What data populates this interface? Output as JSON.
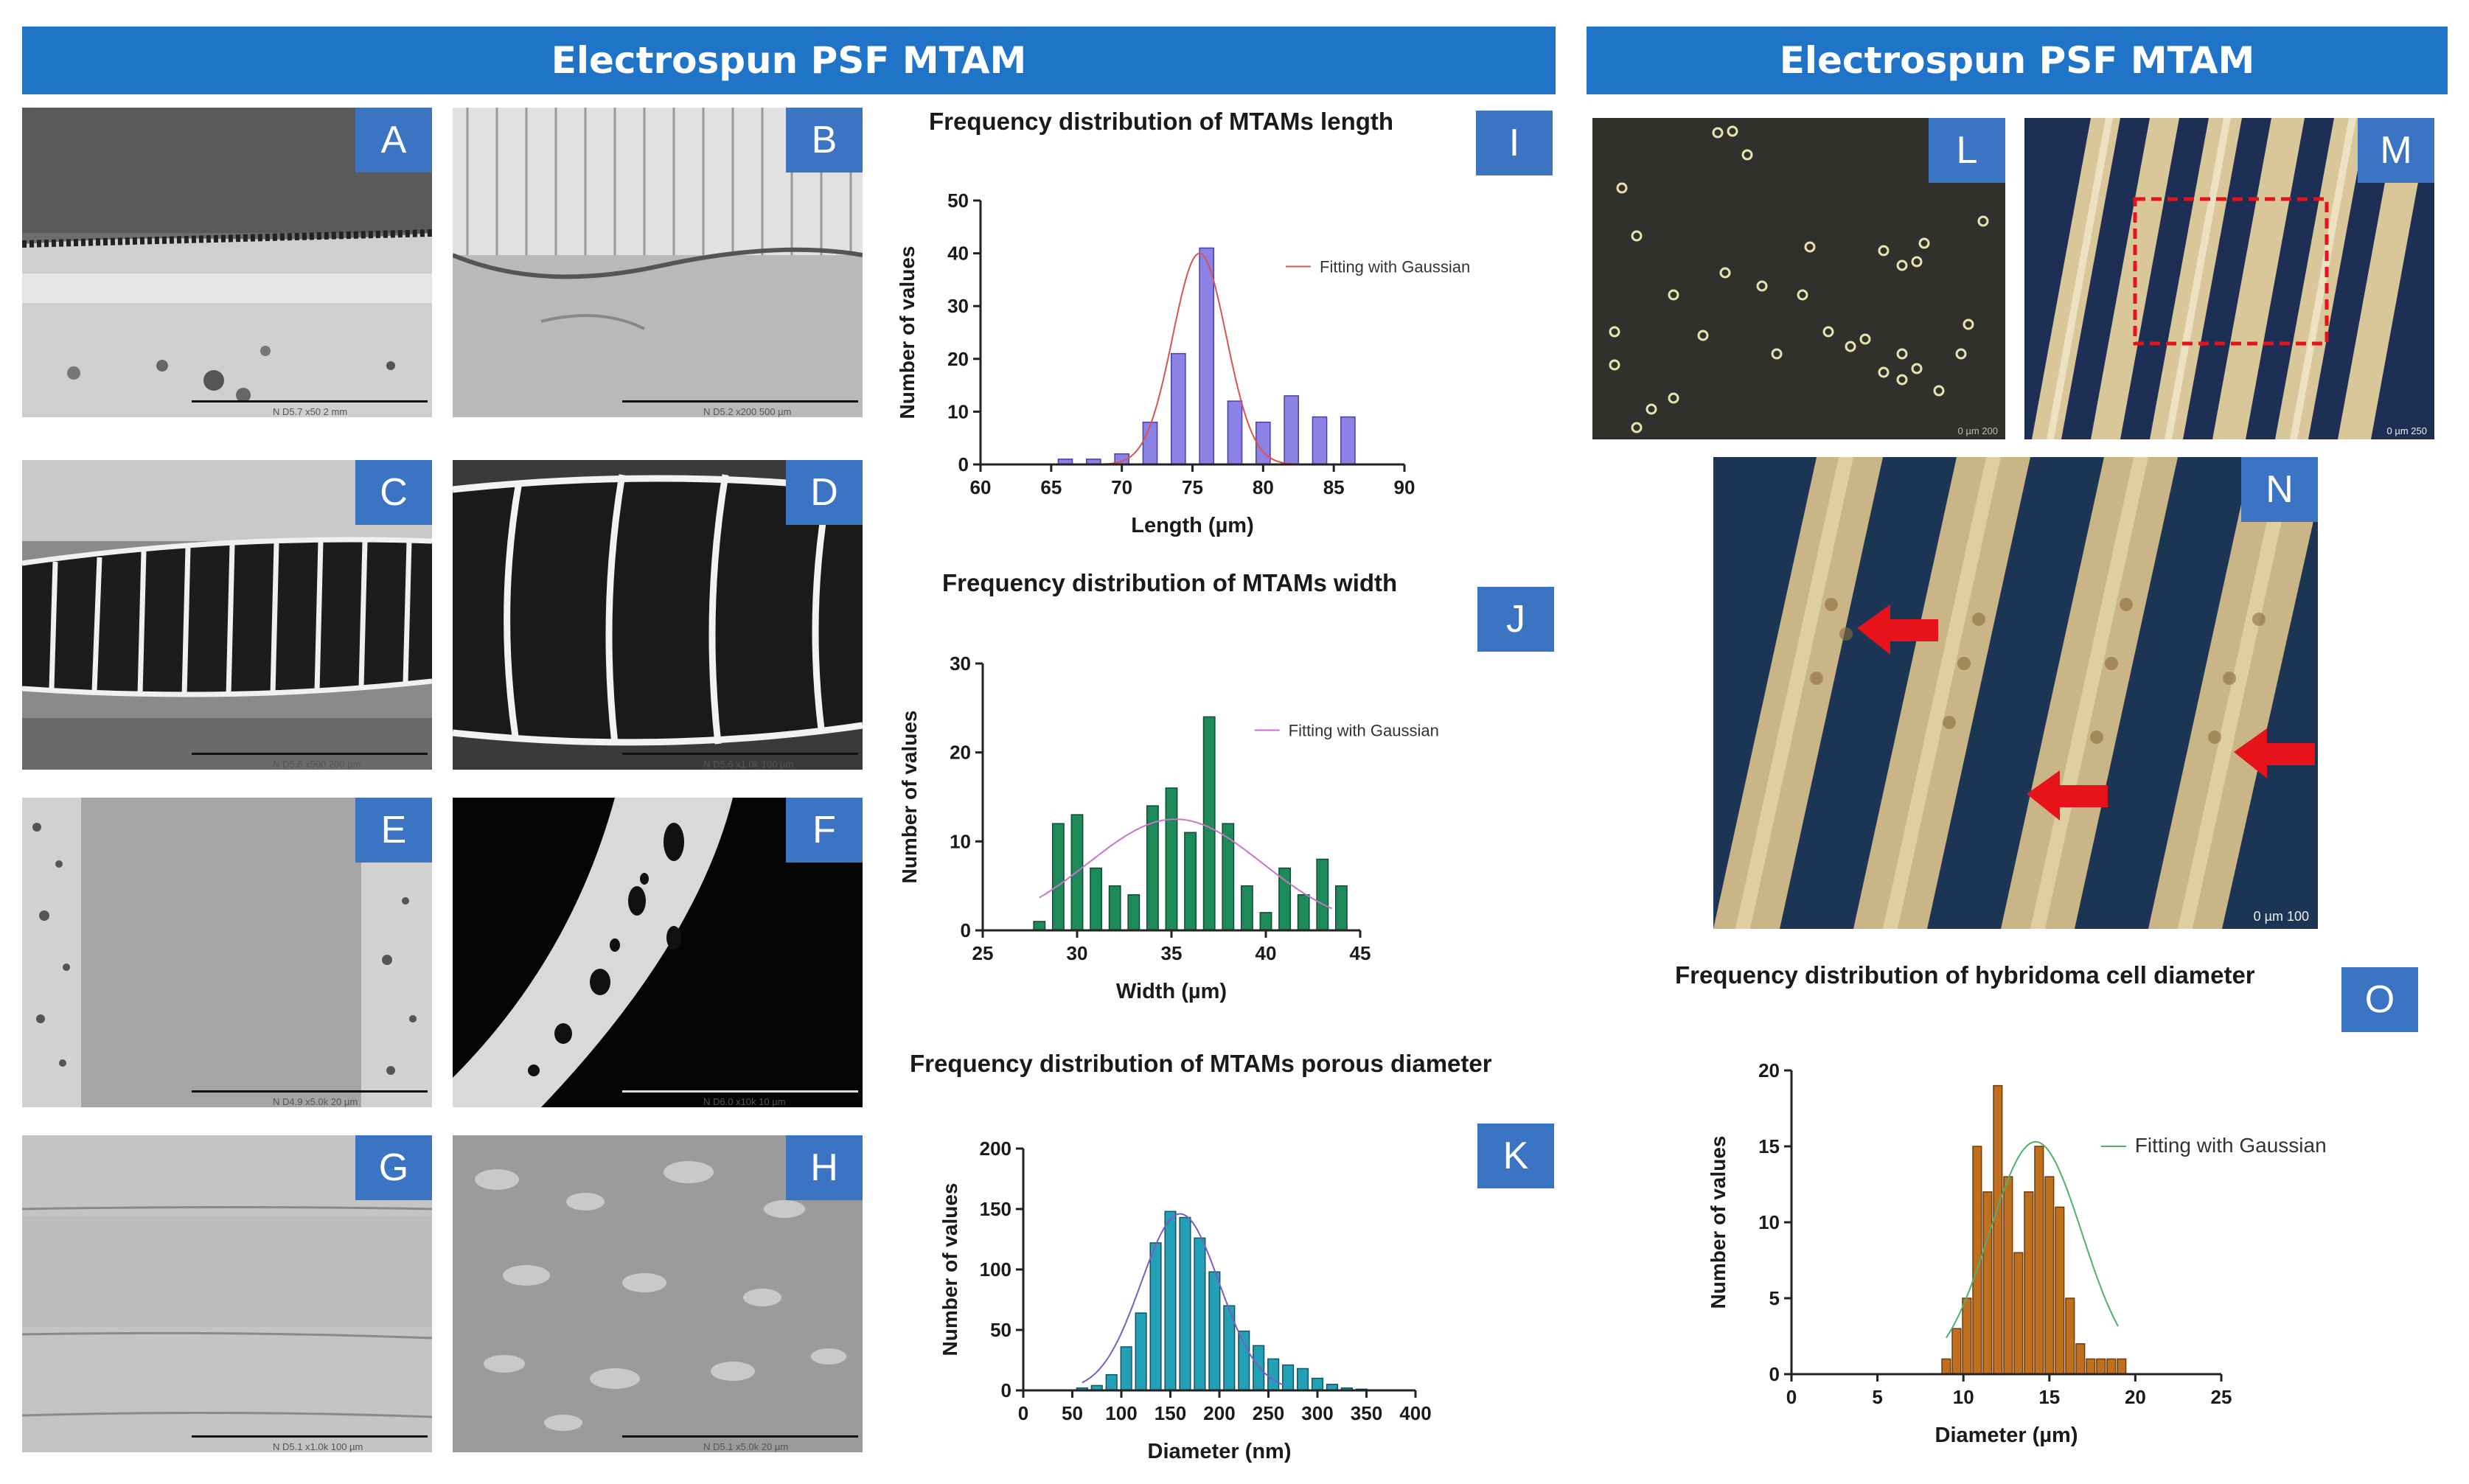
{
  "banners": {
    "left": "Electrospun PSF MTAM",
    "right": "Electrospun PSF MTAM"
  },
  "panel_labels": [
    "A",
    "B",
    "C",
    "D",
    "E",
    "F",
    "G",
    "H",
    "I",
    "J",
    "K",
    "L",
    "M",
    "N",
    "O"
  ],
  "sem_captions": {
    "A": "N   D5.7  x50     2 mm",
    "B": "N   D5.2  x200    500 µm",
    "C": "N   D5.6  x500    200 µm",
    "D": "N   D5.6  x1.0k   100 µm",
    "E": "N   D4.9  x5.0k   20 µm",
    "F": "N   D6.0  x10k    10 µm",
    "G": "N   D5.1  x1.0k   100 µm",
    "H": "N   D5.1  x5.0k   20 µm"
  },
  "micro_scale": {
    "L": "0  µm  200",
    "M": "0  µm  250",
    "N": "0  µm  100"
  },
  "colors": {
    "banner": "#1f74c7",
    "badge": "#3c74c4",
    "length_bar": "#8c82e6",
    "width_bar": "#1e8a5a",
    "pore_bar": "#21a0b6",
    "cell_bar": "#c06f1e",
    "arrow": "#e8121a"
  },
  "chart_data": [
    {
      "id": "I",
      "type": "bar",
      "title": "Frequency distribution of MTAMs length",
      "xlabel": "Length (µm)",
      "ylabel": "Number of values",
      "xlim": [
        60,
        90
      ],
      "ylim": [
        0,
        50
      ],
      "xticks": [
        60,
        65,
        70,
        75,
        80,
        85,
        90
      ],
      "yticks": [
        0,
        10,
        20,
        30,
        40,
        50
      ],
      "bin_width": 1,
      "x": [
        66,
        68,
        70,
        72,
        74,
        76,
        78,
        80,
        82,
        84,
        86
      ],
      "values": [
        1,
        1,
        2,
        8,
        21,
        41,
        12,
        8,
        13,
        9,
        9
      ],
      "fit": {
        "label": "Fitting with Gaussian",
        "mean": 75.5,
        "sd": 1.9,
        "amplitude": 40,
        "range": [
          68,
          83
        ]
      },
      "colors": {
        "bar": "#8c82e6",
        "edge": "#4a42a8",
        "fit": "#d9534f"
      }
    },
    {
      "id": "J",
      "type": "bar",
      "title": "Frequency distribution of MTAMs width",
      "xlabel": "Width (µm)",
      "ylabel": "Number of values",
      "xlim": [
        25,
        45
      ],
      "ylim": [
        0,
        30
      ],
      "xticks": [
        25,
        30,
        35,
        40,
        45
      ],
      "yticks": [
        0,
        10,
        20,
        30
      ],
      "bin_width": 0.6,
      "x": [
        28,
        29,
        30,
        31,
        32,
        33,
        34,
        35,
        36,
        37,
        38,
        39,
        40,
        41,
        42,
        43,
        44
      ],
      "values": [
        1,
        12,
        13,
        7,
        5,
        4,
        14,
        16,
        11,
        24,
        12,
        5,
        2,
        7,
        4,
        8,
        5
      ],
      "fit": {
        "label": "Fitting with Gaussian",
        "mean": 35.2,
        "sd": 4.6,
        "amplitude": 12.5,
        "range": [
          28,
          43.5
        ]
      },
      "colors": {
        "bar": "#1e8a5a",
        "edge": "#0e4d31",
        "fit": "#c774c9"
      }
    },
    {
      "id": "K",
      "type": "bar",
      "title": "Frequency distribution of MTAMs porous diameter",
      "xlabel": "Diameter (nm)",
      "ylabel": "Number of values",
      "xlim": [
        0,
        400
      ],
      "ylim": [
        0,
        200
      ],
      "xticks": [
        0,
        50,
        100,
        150,
        200,
        250,
        300,
        350,
        400
      ],
      "yticks": [
        0,
        50,
        100,
        150,
        200
      ],
      "bin_width": 11,
      "x": [
        60,
        75,
        90,
        105,
        120,
        135,
        150,
        165,
        180,
        195,
        210,
        225,
        240,
        255,
        270,
        285,
        300,
        315,
        330,
        345
      ],
      "values": [
        2,
        4,
        13,
        36,
        64,
        122,
        148,
        143,
        126,
        98,
        70,
        49,
        37,
        26,
        21,
        18,
        10,
        5,
        2,
        1
      ],
      "fit": {
        "label": "",
        "mean": 160,
        "sd": 40,
        "amplitude": 146,
        "range": [
          60,
          265
        ]
      },
      "colors": {
        "bar": "#21a0b6",
        "edge": "#0d5766",
        "fit": "#7d5cc6"
      }
    },
    {
      "id": "O",
      "type": "bar",
      "title": "Frequency distribution of hybridoma cell diameter",
      "xlabel": "Diameter (µm)",
      "ylabel": "Number of values",
      "xlim": [
        0,
        25
      ],
      "ylim": [
        0,
        20
      ],
      "xticks": [
        0,
        5,
        10,
        15,
        20,
        25
      ],
      "yticks": [
        0,
        5,
        10,
        15,
        20
      ],
      "bin_width": 0.5,
      "x": [
        9,
        9.6,
        10.2,
        10.8,
        11.4,
        12,
        12.6,
        13.2,
        13.8,
        14.4,
        15,
        15.6,
        16.2,
        16.8,
        17.4,
        18,
        18.6,
        19.2
      ],
      "values": [
        1,
        3,
        5,
        15,
        12,
        19,
        13,
        8,
        12,
        15,
        13,
        11,
        5,
        2,
        1,
        1,
        1,
        1
      ],
      "fit": {
        "label": "Fitting with Gaussian",
        "mean": 14.2,
        "sd": 2.7,
        "amplitude": 15.3,
        "range": [
          9,
          19
        ]
      },
      "colors": {
        "bar": "#c06f1e",
        "edge": "#6e3b0a",
        "fit": "#4fb06b"
      }
    }
  ]
}
